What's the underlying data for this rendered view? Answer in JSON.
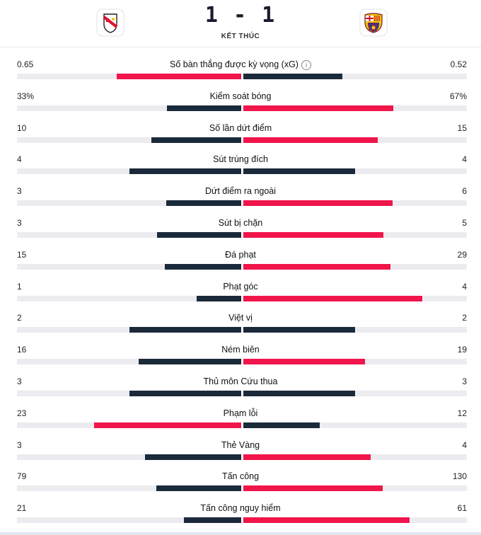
{
  "match": {
    "score": "1 - 1",
    "status": "KẾT THÚC",
    "home_logo": "rayo-vallecano-crest-icon",
    "away_logo": "fc-barcelona-crest-icon"
  },
  "colors": {
    "leader": "#f0154a",
    "other": "#1b2a3a",
    "track": "#ececf0"
  },
  "stats": [
    {
      "label": "Số bàn thắng được kỳ vọng (xG)",
      "home": "0.65",
      "away": "0.52",
      "home_n": 0.65,
      "away_n": 0.52,
      "info": "i"
    },
    {
      "label": "Kiểm soát bóng",
      "home": "33%",
      "away": "67%",
      "home_n": 33,
      "away_n": 67
    },
    {
      "label": "Số lần dứt điểm",
      "home": "10",
      "away": "15",
      "home_n": 10,
      "away_n": 15
    },
    {
      "label": "Sút trúng đích",
      "home": "4",
      "away": "4",
      "home_n": 4,
      "away_n": 4
    },
    {
      "label": "Dứt điểm ra ngoài",
      "home": "3",
      "away": "6",
      "home_n": 3,
      "away_n": 6
    },
    {
      "label": "Sút bị chặn",
      "home": "3",
      "away": "5",
      "home_n": 3,
      "away_n": 5
    },
    {
      "label": "Đá phạt",
      "home": "15",
      "away": "29",
      "home_n": 15,
      "away_n": 29
    },
    {
      "label": "Phạt góc",
      "home": "1",
      "away": "4",
      "home_n": 1,
      "away_n": 4
    },
    {
      "label": "Việt vị",
      "home": "2",
      "away": "2",
      "home_n": 2,
      "away_n": 2
    },
    {
      "label": "Ném biên",
      "home": "16",
      "away": "19",
      "home_n": 16,
      "away_n": 19
    },
    {
      "label": "Thủ môn Cứu thua",
      "home": "3",
      "away": "3",
      "home_n": 3,
      "away_n": 3
    },
    {
      "label": "Phạm lỗi",
      "home": "23",
      "away": "12",
      "home_n": 23,
      "away_n": 12
    },
    {
      "label": "Thẻ Vàng",
      "home": "3",
      "away": "4",
      "home_n": 3,
      "away_n": 4
    },
    {
      "label": "Tấn công",
      "home": "79",
      "away": "130",
      "home_n": 79,
      "away_n": 130
    },
    {
      "label": "Tấn công nguy hiểm",
      "home": "21",
      "away": "61",
      "home_n": 21,
      "away_n": 61
    }
  ]
}
